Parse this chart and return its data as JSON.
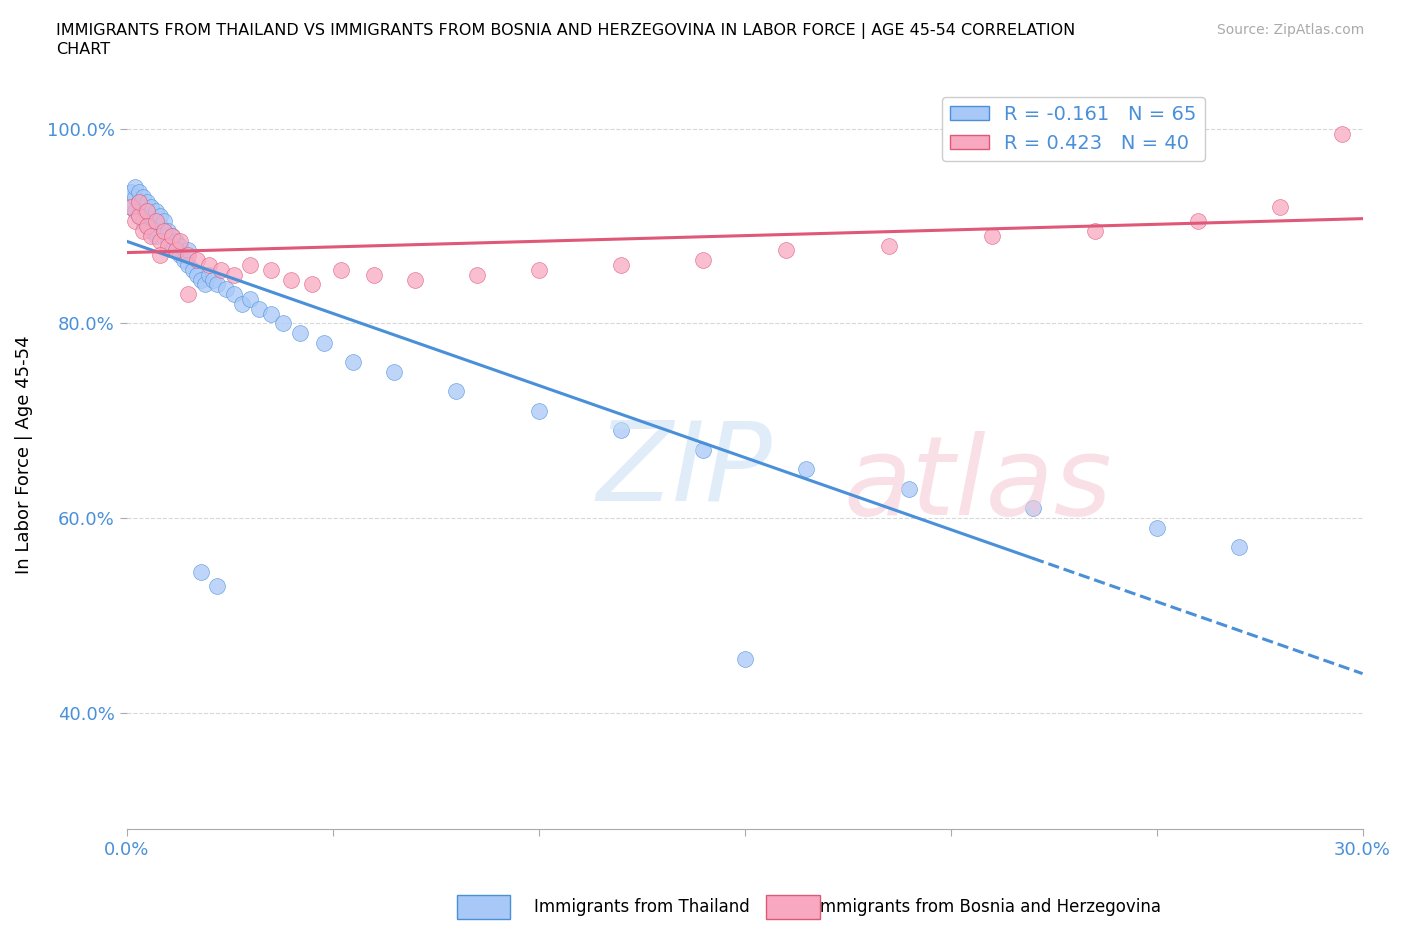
{
  "title_line1": "IMMIGRANTS FROM THAILAND VS IMMIGRANTS FROM BOSNIA AND HERZEGOVINA IN LABOR FORCE | AGE 45-54 CORRELATION",
  "title_line2": "CHART",
  "source_text": "Source: ZipAtlas.com",
  "ylabel": "In Labor Force | Age 45-54",
  "xlim": [
    0.0,
    0.3
  ],
  "ylim": [
    0.28,
    1.05
  ],
  "xticks": [
    0.0,
    0.05,
    0.1,
    0.15,
    0.2,
    0.25,
    0.3
  ],
  "yticks": [
    0.4,
    0.6,
    0.8,
    1.0
  ],
  "ytick_labels": [
    "40.0%",
    "60.0%",
    "80.0%",
    "100.0%"
  ],
  "color_thailand": "#a8c8f8",
  "color_bosnia": "#f8a8c0",
  "trend_color_thailand": "#4a90d9",
  "trend_color_bosnia": "#e05878",
  "R_thailand": -0.161,
  "N_thailand": 65,
  "R_bosnia": 0.423,
  "N_bosnia": 40,
  "background_color": "#ffffff",
  "grid_color": "#d8d8d8",
  "thailand_x": [
    0.001,
    0.001,
    0.002,
    0.002,
    0.002,
    0.003,
    0.003,
    0.003,
    0.004,
    0.004,
    0.004,
    0.005,
    0.005,
    0.005,
    0.006,
    0.006,
    0.006,
    0.007,
    0.007,
    0.007,
    0.008,
    0.008,
    0.009,
    0.009,
    0.01,
    0.01,
    0.011,
    0.011,
    0.012,
    0.012,
    0.013,
    0.013,
    0.014,
    0.015,
    0.015,
    0.016,
    0.017,
    0.018,
    0.019,
    0.02,
    0.021,
    0.022,
    0.024,
    0.026,
    0.028,
    0.03,
    0.032,
    0.035,
    0.038,
    0.042,
    0.048,
    0.055,
    0.065,
    0.08,
    0.1,
    0.12,
    0.14,
    0.165,
    0.19,
    0.22,
    0.25,
    0.27,
    0.018,
    0.022,
    0.15
  ],
  "thailand_y": [
    0.935,
    0.92,
    0.93,
    0.915,
    0.94,
    0.925,
    0.91,
    0.935,
    0.92,
    0.905,
    0.93,
    0.915,
    0.925,
    0.9,
    0.91,
    0.895,
    0.92,
    0.905,
    0.915,
    0.89,
    0.9,
    0.91,
    0.895,
    0.905,
    0.885,
    0.895,
    0.88,
    0.89,
    0.875,
    0.885,
    0.87,
    0.88,
    0.865,
    0.875,
    0.86,
    0.855,
    0.85,
    0.845,
    0.84,
    0.85,
    0.845,
    0.84,
    0.835,
    0.83,
    0.82,
    0.825,
    0.815,
    0.81,
    0.8,
    0.79,
    0.78,
    0.76,
    0.75,
    0.73,
    0.71,
    0.69,
    0.67,
    0.65,
    0.63,
    0.61,
    0.59,
    0.57,
    0.545,
    0.53,
    0.455
  ],
  "bosnia_x": [
    0.001,
    0.002,
    0.003,
    0.003,
    0.004,
    0.005,
    0.005,
    0.006,
    0.007,
    0.008,
    0.009,
    0.01,
    0.011,
    0.012,
    0.013,
    0.015,
    0.017,
    0.02,
    0.023,
    0.026,
    0.03,
    0.035,
    0.04,
    0.045,
    0.052,
    0.06,
    0.07,
    0.085,
    0.1,
    0.12,
    0.14,
    0.16,
    0.185,
    0.21,
    0.235,
    0.26,
    0.28,
    0.295,
    0.015,
    0.008
  ],
  "bosnia_y": [
    0.92,
    0.905,
    0.91,
    0.925,
    0.895,
    0.915,
    0.9,
    0.89,
    0.905,
    0.885,
    0.895,
    0.88,
    0.89,
    0.875,
    0.885,
    0.87,
    0.865,
    0.86,
    0.855,
    0.85,
    0.86,
    0.855,
    0.845,
    0.84,
    0.855,
    0.85,
    0.845,
    0.85,
    0.855,
    0.86,
    0.865,
    0.875,
    0.88,
    0.89,
    0.895,
    0.905,
    0.92,
    0.995,
    0.83,
    0.87
  ],
  "trend_split_x": 0.22
}
